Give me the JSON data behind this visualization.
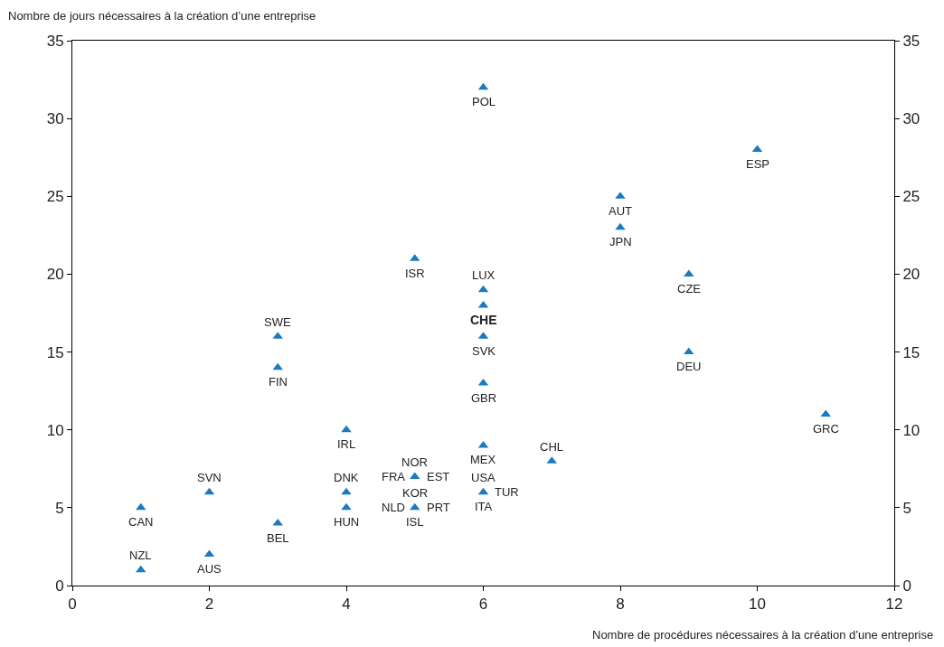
{
  "chart_data": {
    "type": "scatter",
    "ylabel": "Nombre de jours nécessaires à la création d’une entreprise",
    "xlabel": "Nombre de procédures nécessaires à la création d’une entreprise",
    "x": [
      1,
      1,
      2,
      2,
      3,
      3,
      3,
      4,
      4,
      4,
      5,
      5,
      5,
      6,
      6,
      6,
      6,
      6,
      6,
      6,
      7,
      8,
      8,
      9,
      9,
      10,
      11
    ],
    "series": [
      {
        "color": "#1a7ac0",
        "values": [
          1,
          5,
          2,
          6,
          4,
          14,
          16,
          5,
          6,
          10,
          21,
          7,
          5,
          32,
          19,
          18,
          16,
          13,
          9,
          6,
          8,
          25,
          23,
          20,
          15,
          28,
          11
        ]
      }
    ],
    "marker": "triangle",
    "xlim": [
      0,
      12
    ],
    "xticks": [
      0,
      2,
      4,
      6,
      8,
      10,
      12
    ],
    "ylim": [
      0,
      35
    ],
    "yticks": [
      0,
      5,
      10,
      15,
      20,
      25,
      30,
      35
    ],
    "y2lim": [
      0,
      35
    ],
    "y2ticks": [
      0,
      5,
      10,
      15,
      20,
      25,
      30,
      35
    ],
    "annotations": [
      {
        "text": "NZL",
        "x": 1,
        "y": 1
      },
      {
        "text": "CAN",
        "x": 1,
        "y": 5
      },
      {
        "text": "AUS",
        "x": 2,
        "y": 2
      },
      {
        "text": "SVN",
        "x": 2,
        "y": 6
      },
      {
        "text": "BEL",
        "x": 3,
        "y": 4
      },
      {
        "text": "FIN",
        "x": 3,
        "y": 14
      },
      {
        "text": "SWE",
        "x": 3,
        "y": 16
      },
      {
        "text": "HUN",
        "x": 4,
        "y": 5
      },
      {
        "text": "DNK",
        "x": 4,
        "y": 6
      },
      {
        "text": "IRL",
        "x": 4,
        "y": 10
      },
      {
        "text": "ISR",
        "x": 5,
        "y": 21
      },
      {
        "text": "NOR",
        "x": 5,
        "y": 7
      },
      {
        "text": "FRA",
        "x": 5,
        "y": 7
      },
      {
        "text": "EST",
        "x": 5,
        "y": 7
      },
      {
        "text": "KOR",
        "x": 5,
        "y": 5
      },
      {
        "text": "NLD",
        "x": 5,
        "y": 5
      },
      {
        "text": "PRT",
        "x": 5,
        "y": 5
      },
      {
        "text": "ISL",
        "x": 5,
        "y": 5
      },
      {
        "text": "POL",
        "x": 6,
        "y": 32
      },
      {
        "text": "LUX",
        "x": 6,
        "y": 19
      },
      {
        "text": "CHE",
        "x": 6,
        "y": 18
      },
      {
        "text": "SVK",
        "x": 6,
        "y": 16
      },
      {
        "text": "GBR",
        "x": 6,
        "y": 13
      },
      {
        "text": "MEX",
        "x": 6,
        "y": 9
      },
      {
        "text": "USA",
        "x": 6,
        "y": 6
      },
      {
        "text": "TUR",
        "x": 6,
        "y": 6
      },
      {
        "text": "ITA",
        "x": 6,
        "y": 6
      },
      {
        "text": "CHL",
        "x": 7,
        "y": 8
      },
      {
        "text": "AUT",
        "x": 8,
        "y": 25
      },
      {
        "text": "JPN",
        "x": 8,
        "y": 23
      },
      {
        "text": "CZE",
        "x": 9,
        "y": 20
      },
      {
        "text": "DEU",
        "x": 9,
        "y": 15
      },
      {
        "text": "ESP",
        "x": 10,
        "y": 28
      },
      {
        "text": "GRC",
        "x": 11,
        "y": 11
      }
    ]
  }
}
